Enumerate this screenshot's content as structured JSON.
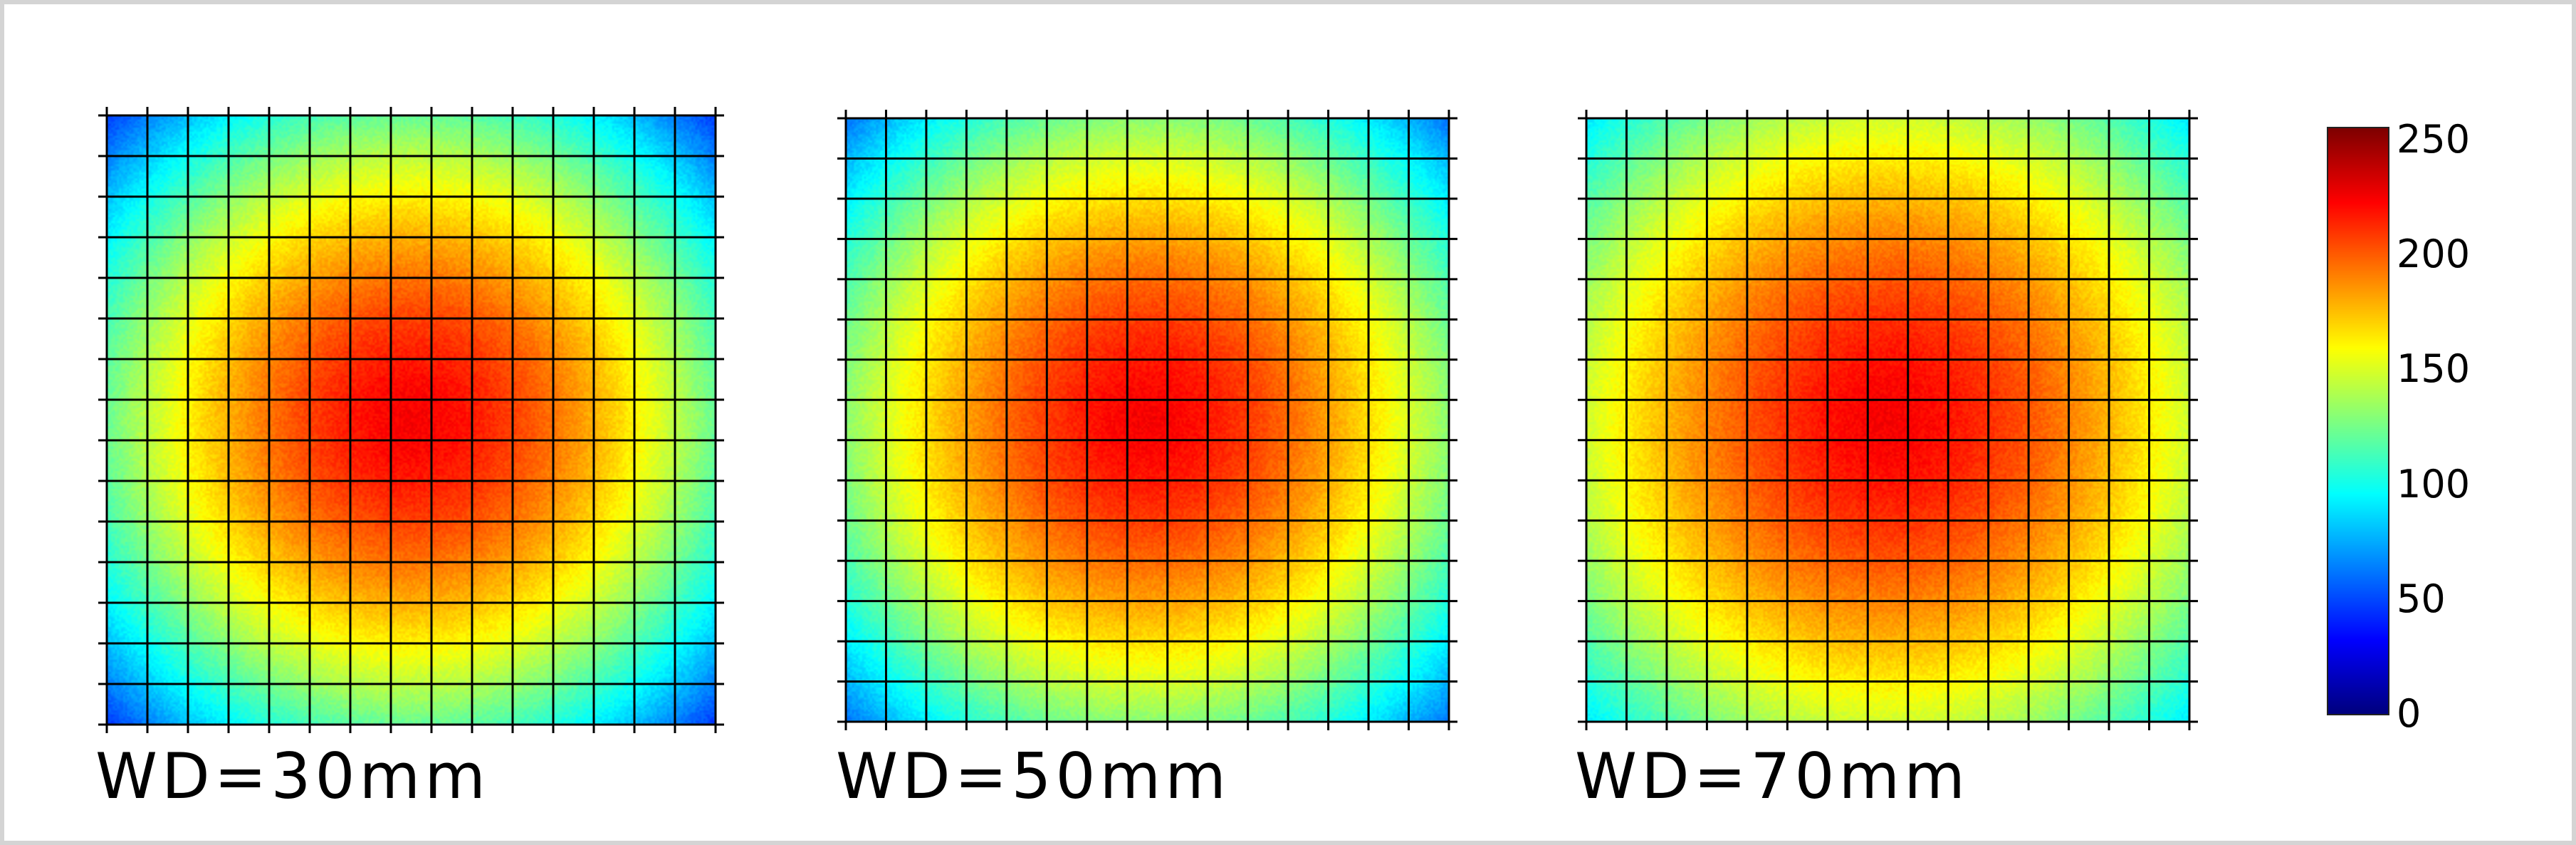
{
  "chart_data": {
    "type": "heatmap",
    "grid": true,
    "colormap": "jet",
    "panels": [
      {
        "label": "WD=30mm",
        "center_value": 225,
        "corner_value": 45
      },
      {
        "label": "WD=50mm",
        "center_value": 225,
        "corner_value": 60
      },
      {
        "label": "WD=70mm",
        "center_value": 225,
        "corner_value": 90
      }
    ],
    "colorbar": {
      "min": 0,
      "max": 255,
      "ticks": [
        "0",
        "50",
        "100",
        "150",
        "200",
        "250"
      ],
      "tick_values": [
        0,
        50,
        100,
        150,
        200,
        250
      ]
    }
  }
}
